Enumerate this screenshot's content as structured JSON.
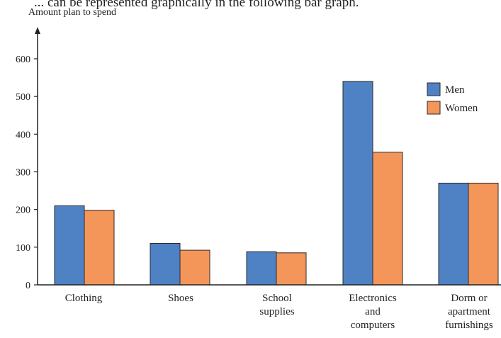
{
  "page": {
    "top_text": "... can be represented graphically in the following bar graph."
  },
  "chart_data": {
    "type": "bar",
    "title": "",
    "ylabel": "Amount plan to spend",
    "xlabel": "",
    "ylim": [
      0,
      650
    ],
    "yticks": [
      0,
      100,
      200,
      300,
      400,
      500,
      600
    ],
    "categories": [
      [
        "Clothing"
      ],
      [
        "Shoes"
      ],
      [
        "School",
        "supplies"
      ],
      [
        "Electronics",
        "and",
        "computers"
      ],
      [
        "Dorm or",
        "apartment",
        "furnishings"
      ]
    ],
    "series": [
      {
        "name": "Men",
        "color": "#4f82c4",
        "values": [
          210,
          110,
          88,
          540,
          270
        ]
      },
      {
        "name": "Women",
        "color": "#f4955a",
        "values": [
          198,
          92,
          85,
          352,
          270
        ]
      }
    ],
    "legend": "top-right",
    "grid": false
  }
}
